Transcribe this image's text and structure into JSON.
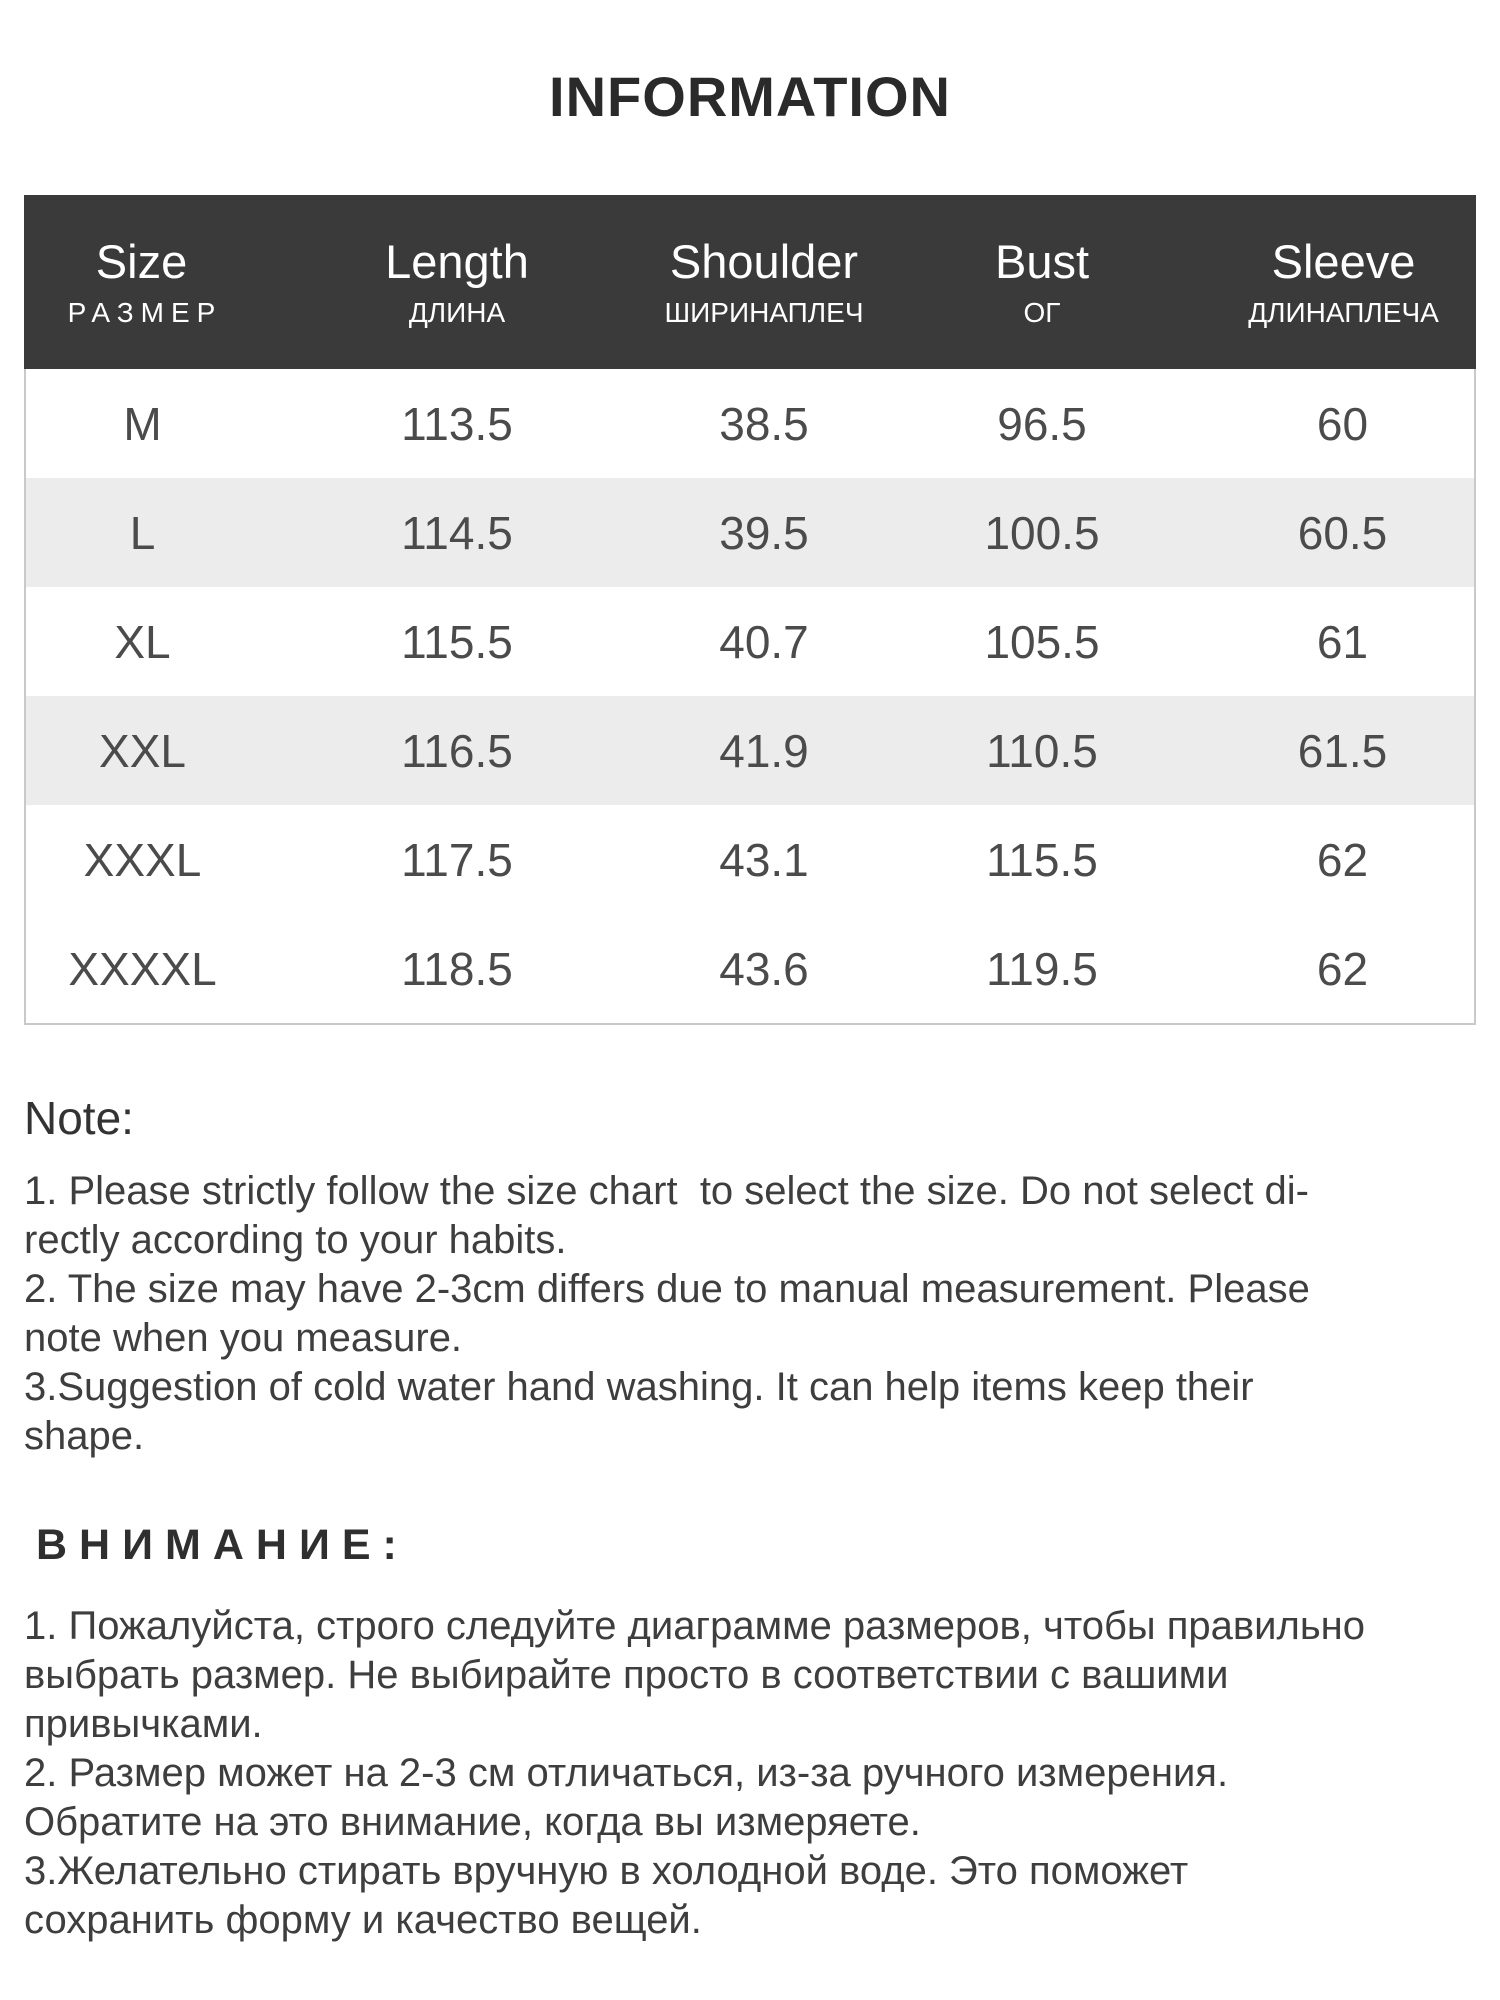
{
  "title": "INFORMATION",
  "size_chart": {
    "columns": [
      {
        "en": "Size",
        "ru": "РАЗМЕР"
      },
      {
        "en": "Length",
        "ru": "ДЛИНА"
      },
      {
        "en": "Shoulder",
        "ru": "ШИРИНАПЛЕЧ"
      },
      {
        "en": "Bust",
        "ru": "ОГ"
      },
      {
        "en": "Sleeve",
        "ru": "ДЛИНАПЛЕЧА"
      }
    ],
    "rows": [
      [
        "M",
        "113.5",
        "38.5",
        "96.5",
        "60"
      ],
      [
        "L",
        "114.5",
        "39.5",
        "100.5",
        "60.5"
      ],
      [
        "XL",
        "115.5",
        "40.7",
        "105.5",
        "61"
      ],
      [
        "XXL",
        "116.5",
        "41.9",
        "110.5",
        "61.5"
      ],
      [
        "XXXL",
        "117.5",
        "43.1",
        "115.5",
        "62"
      ],
      [
        "XXXXL",
        "118.5",
        "43.6",
        "119.5",
        "62"
      ]
    ]
  },
  "notes_en": {
    "heading": "Note:",
    "lines": [
      "1. Please strictly follow the size chart  to select the size. Do not select di-",
      "rectly according to your habits.",
      "2. The size may have 2-3cm differs due to manual measurement. Please",
      "note when you measure.",
      "3.Suggestion of cold water hand washing. It can help items keep their",
      "shape."
    ]
  },
  "notes_ru": {
    "heading": "ВНИМАНИЕ:",
    "lines": [
      "1. Пожалуйста, строго следуйте диаграмме размеров, чтобы правильно",
      "выбрать размер. Не выбирайте просто в соответствии с вашими",
      "привычками.",
      "2. Размер может на 2-3 см отличаться, из-за ручного измерения.",
      "Обратите на это внимание, когда вы измеряете.",
      "3.Желательно стирать вручную в холодной воде. Это поможет",
      "сохранить форму и качество вещей."
    ]
  },
  "colors": {
    "header_background": "#3a3a3a",
    "header_text": "#ffffff",
    "alternate_row_background": "#ececec",
    "table_border": "#c9c9c9",
    "body_text": "#3e3e3e"
  }
}
